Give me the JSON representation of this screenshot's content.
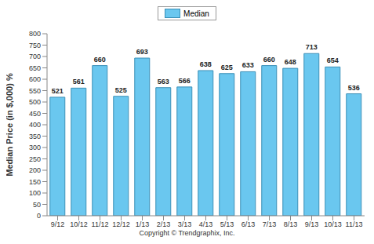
{
  "chart_data": {
    "type": "bar",
    "y_label": "Median Price (in $,000) %",
    "categories": [
      "9/12",
      "10/12",
      "11/12",
      "12/12",
      "1/13",
      "2/13",
      "3/13",
      "4/13",
      "5/13",
      "6/13",
      "7/13",
      "8/13",
      "9/13",
      "10/13",
      "11/13"
    ],
    "series": [
      {
        "name": "Median",
        "color": "#6ac7ef",
        "values": [
          521,
          561,
          660,
          525,
          693,
          563,
          566,
          638,
          625,
          633,
          660,
          648,
          713,
          654,
          536
        ]
      }
    ],
    "ylim": [
      0,
      800
    ],
    "yticks": [
      0,
      50,
      100,
      150,
      200,
      250,
      300,
      350,
      400,
      450,
      500,
      550,
      600,
      650,
      700,
      750,
      800
    ],
    "grid": false,
    "legend": "top",
    "data_labels": true,
    "annotations": [
      "Copyright © Trendgraphix, Inc."
    ]
  }
}
